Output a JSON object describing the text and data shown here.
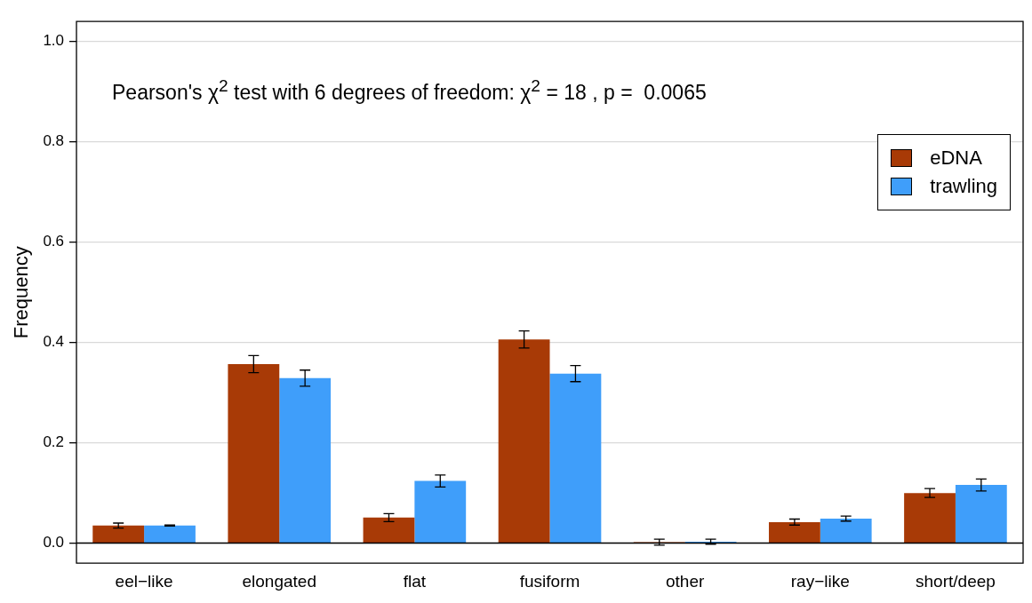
{
  "chart_data": {
    "type": "bar",
    "ylabel": "Frequency",
    "categories": [
      "eel−like",
      "elongated",
      "flat",
      "fusiform",
      "other",
      "ray−like",
      "short/deep"
    ],
    "series": [
      {
        "name": "eDNA",
        "color": "#a83a06",
        "values": [
          0.035,
          0.357,
          0.051,
          0.406,
          0.002,
          0.042,
          0.1
        ],
        "errors": [
          0.005,
          0.017,
          0.008,
          0.017,
          0.006,
          0.006,
          0.009
        ]
      },
      {
        "name": "trawling",
        "color": "#3f9efa",
        "values": [
          0.035,
          0.329,
          0.124,
          0.338,
          0.003,
          0.049,
          0.116
        ],
        "errors": [
          0.001,
          0.016,
          0.012,
          0.016,
          0.005,
          0.005,
          0.012
        ]
      }
    ],
    "ylim": [
      -0.04,
      1.04
    ],
    "yticks": [
      {
        "value": 0,
        "label": "0.0"
      },
      0.2,
      0.4,
      0.6,
      0.8,
      {
        "value": 1,
        "label": "1.0"
      }
    ],
    "grid": "y",
    "legend": "top right",
    "ref_lines": [
      {
        "axis": "y",
        "value": 0,
        "color": "#000000"
      }
    ],
    "annotations": [
      "Pearson's χ$^{2}$ test with 6 degrees of freedom: χ$^{2}$ = 18 , p =  0.0065"
    ]
  }
}
